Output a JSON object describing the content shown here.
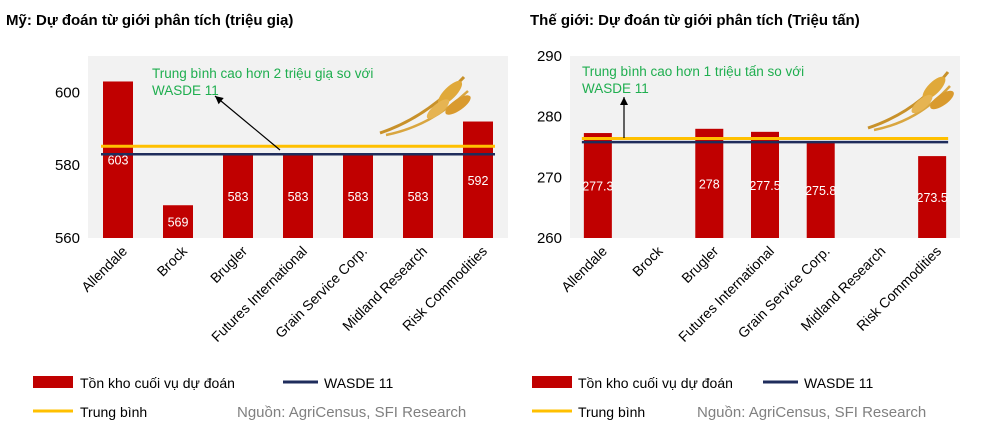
{
  "colors": {
    "bar": "#c00000",
    "wasde": "#1f2d5c",
    "average": "#ffc000",
    "annotation": "#1fae4f",
    "plot_bg": "#f2f2f2",
    "source": "#808080"
  },
  "icons": [
    "wheat-icon",
    "arrow-icon"
  ],
  "legend": {
    "stocks": "Tồn kho cuối vụ dự đoán",
    "wasde": "WASDE 11",
    "average": "Trung bình",
    "source": "Nguồn: AgriCensus, SFI Research"
  },
  "chart_data": [
    {
      "type": "bar",
      "title": "Mỹ: Dự đoán từ giới phân tích (triệu giạ)",
      "categories": [
        "Allendale",
        "Brock",
        "Brugler",
        "Futures International",
        "Grain Service Corp.",
        "Midland Research",
        "Risk Commodities"
      ],
      "values": [
        603,
        569,
        583,
        583,
        583,
        583,
        592
      ],
      "bar_labels": [
        "603",
        "569",
        "583",
        "583",
        "583",
        "583",
        "592"
      ],
      "ylim": [
        560,
        610
      ],
      "yticks": [
        "560",
        "580",
        "600"
      ],
      "wasde_value": 583,
      "average_value": 585.2,
      "annotation": [
        "Trung bình cao hơn 2 triệu giạ so với",
        "WASDE 11"
      ]
    },
    {
      "type": "bar",
      "title": "Thế giới: Dự đoán từ giới phân tích (Triệu tấn)",
      "categories": [
        "Allendale",
        "Brock",
        "Brugler",
        "Futures International",
        "Grain Service Corp.",
        "Midland Research",
        "Risk Commodities"
      ],
      "values": [
        277.3,
        null,
        278,
        277.5,
        275.8,
        null,
        273.5
      ],
      "bar_labels": [
        "277.3",
        "",
        "278",
        "277.5",
        "275.8",
        "",
        "273.5"
      ],
      "ylim": [
        260,
        290
      ],
      "yticks": [
        "260",
        "270",
        "280",
        "290"
      ],
      "wasde_value": 275.8,
      "average_value": 276.4,
      "annotation": [
        "Trung bình cao hơn 1 triệu tấn so với",
        "WASDE 11"
      ]
    }
  ]
}
